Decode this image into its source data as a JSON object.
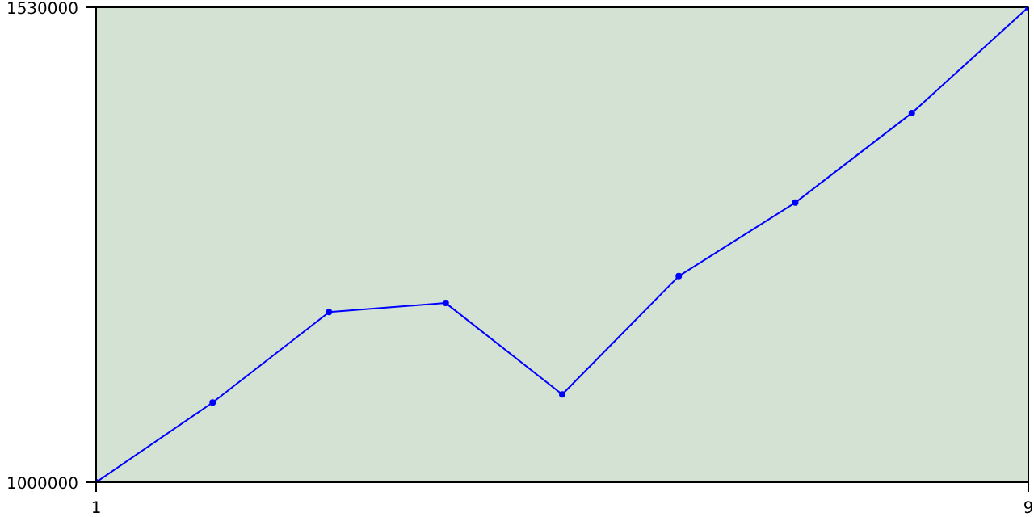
{
  "chart_data": {
    "type": "line",
    "x": [
      1,
      2,
      3,
      4,
      5,
      6,
      7,
      8,
      9
    ],
    "series": [
      {
        "color": "#0000ff",
        "values": [
          1000000,
          1089000,
          1190000,
          1200000,
          1098000,
          1230000,
          1312000,
          1412000,
          1530000
        ]
      }
    ],
    "xlim": [
      1,
      9
    ],
    "ylim": [
      1000000,
      1530000
    ],
    "xticks": [
      1,
      9
    ],
    "yticks": [
      {
        "value": 1000000,
        "label": "1000000"
      },
      {
        "value": 1530000,
        "label": "1530000"
      }
    ],
    "marker": "circle",
    "line_style": "solid"
  }
}
